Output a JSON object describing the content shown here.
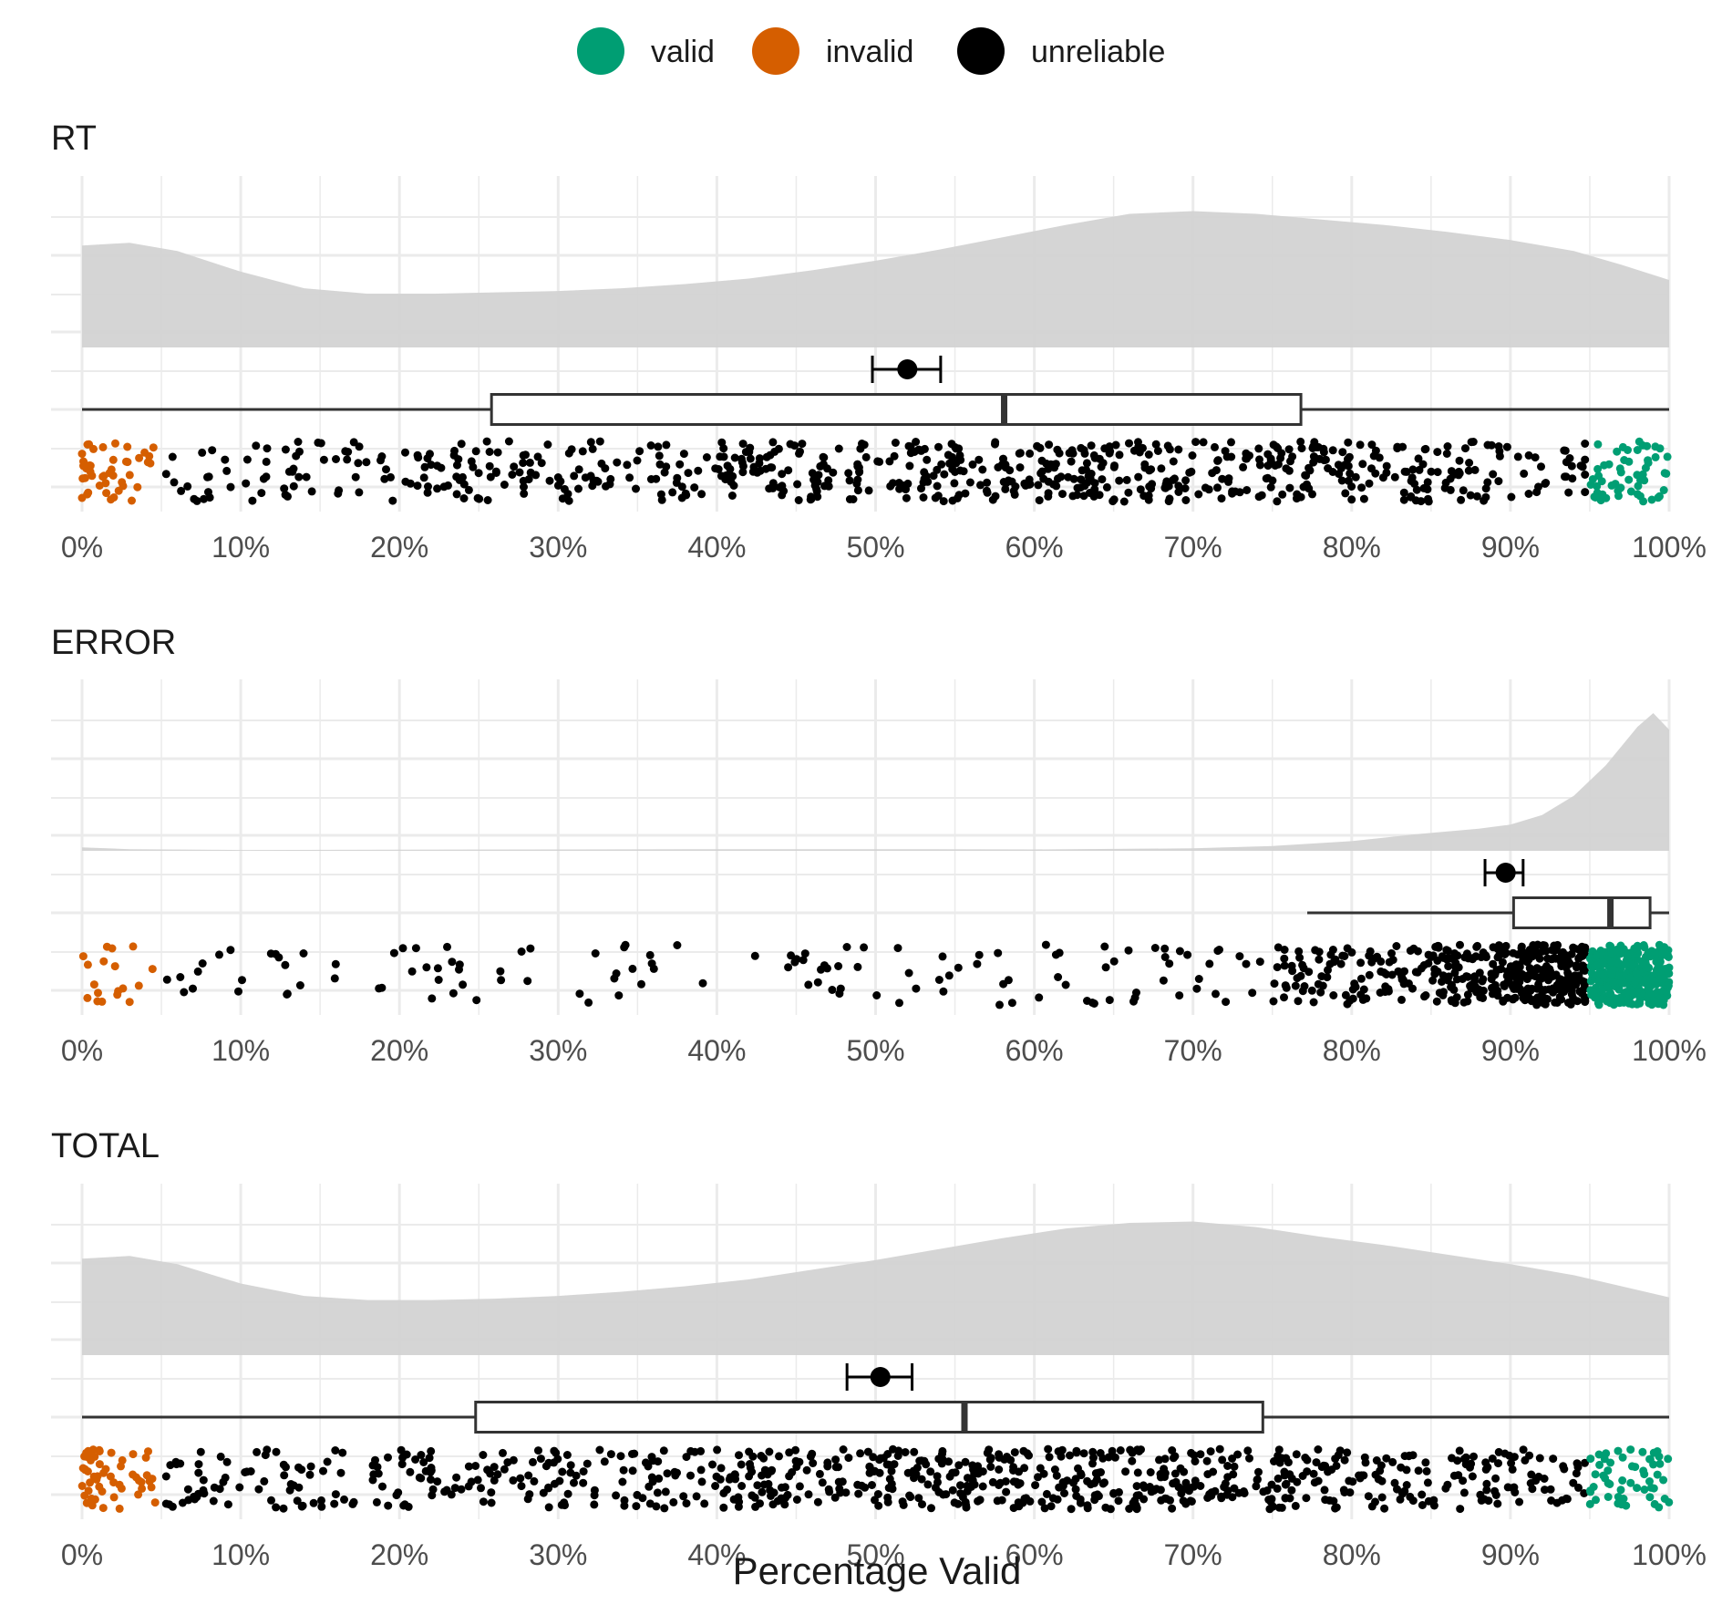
{
  "colors": {
    "valid": "#009E73",
    "invalid": "#D55E00",
    "unreliable": "#000000",
    "density_fill": "#d3d3d3",
    "grid": "#ebebeb",
    "box_line": "#333333"
  },
  "chart_data": {
    "type": "raincloud",
    "xlabel": "Percentage Valid",
    "xlim": [
      0,
      100
    ],
    "x_tick_values": [
      0,
      10,
      20,
      30,
      40,
      50,
      60,
      70,
      80,
      90,
      100
    ],
    "x_tick_labels": [
      "0%",
      "10%",
      "20%",
      "30%",
      "40%",
      "50%",
      "60%",
      "70%",
      "80%",
      "90%",
      "100%"
    ],
    "grid": true,
    "legend": {
      "position": "top",
      "entries": [
        {
          "label": "valid",
          "color": "#009E73"
        },
        {
          "label": "invalid",
          "color": "#D55E00"
        },
        {
          "label": "unreliable",
          "color": "#000000"
        }
      ]
    },
    "category_rules": {
      "invalid_below": 5,
      "valid_at_or_above": 95
    },
    "panels": [
      {
        "title": "RT",
        "mean": 52,
        "mean_ci": [
          49.8,
          54.1
        ],
        "box": {
          "whisker_low": 0,
          "q1": 25.8,
          "median": 58.1,
          "q3": 76.8,
          "whisker_high": 100
        },
        "density": [
          [
            0,
            0.74
          ],
          [
            3,
            0.76
          ],
          [
            6,
            0.7
          ],
          [
            10,
            0.55
          ],
          [
            14,
            0.43
          ],
          [
            18,
            0.39
          ],
          [
            22,
            0.39
          ],
          [
            26,
            0.4
          ],
          [
            30,
            0.41
          ],
          [
            34,
            0.43
          ],
          [
            38,
            0.46
          ],
          [
            42,
            0.5
          ],
          [
            46,
            0.56
          ],
          [
            50,
            0.63
          ],
          [
            54,
            0.71
          ],
          [
            58,
            0.8
          ],
          [
            62,
            0.89
          ],
          [
            66,
            0.97
          ],
          [
            70,
            0.99
          ],
          [
            74,
            0.97
          ],
          [
            78,
            0.93
          ],
          [
            82,
            0.89
          ],
          [
            86,
            0.84
          ],
          [
            90,
            0.78
          ],
          [
            94,
            0.7
          ],
          [
            97,
            0.6
          ],
          [
            100,
            0.49
          ]
        ],
        "points": {
          "invalid": 45,
          "valid": 55,
          "unreliable": 700,
          "unreliable_weights": [
            [
              5,
              0.5
            ],
            [
              20,
              0.7
            ],
            [
              40,
              1.0
            ],
            [
              55,
              1.6
            ],
            [
              68,
              1.6
            ],
            [
              80,
              1.2
            ],
            [
              95,
              0.7
            ]
          ]
        }
      },
      {
        "title": "ERROR",
        "mean": 89.7,
        "mean_ci": [
          88.4,
          90.8
        ],
        "box": {
          "whisker_low": 77.2,
          "q1": 90.2,
          "median": 96.3,
          "q3": 98.8,
          "whisker_high": 100
        },
        "density": [
          [
            0,
            0.025
          ],
          [
            3,
            0.012
          ],
          [
            10,
            0.006
          ],
          [
            20,
            0.008
          ],
          [
            30,
            0.01
          ],
          [
            40,
            0.012
          ],
          [
            50,
            0.012
          ],
          [
            60,
            0.01
          ],
          [
            70,
            0.018
          ],
          [
            75,
            0.035
          ],
          [
            80,
            0.07
          ],
          [
            84,
            0.12
          ],
          [
            88,
            0.16
          ],
          [
            90,
            0.19
          ],
          [
            92,
            0.26
          ],
          [
            94,
            0.4
          ],
          [
            96,
            0.62
          ],
          [
            98,
            0.9
          ],
          [
            99,
            1.0
          ],
          [
            100,
            0.88
          ]
        ],
        "points": {
          "invalid": 18,
          "valid": 320,
          "unreliable": 560,
          "unreliable_weights": [
            [
              5,
              0.05
            ],
            [
              30,
              0.07
            ],
            [
              60,
              0.08
            ],
            [
              75,
              0.2
            ],
            [
              85,
              0.7
            ],
            [
              90,
              1.4
            ],
            [
              95,
              2.2
            ]
          ]
        }
      },
      {
        "title": "TOTAL",
        "mean": 50.3,
        "mean_ci": [
          48.2,
          52.3
        ],
        "box": {
          "whisker_low": 0,
          "q1": 24.8,
          "median": 55.6,
          "q3": 74.4,
          "whisker_high": 100
        },
        "density": [
          [
            0,
            0.7
          ],
          [
            3,
            0.72
          ],
          [
            6,
            0.66
          ],
          [
            10,
            0.52
          ],
          [
            14,
            0.43
          ],
          [
            18,
            0.4
          ],
          [
            22,
            0.4
          ],
          [
            26,
            0.41
          ],
          [
            30,
            0.43
          ],
          [
            34,
            0.46
          ],
          [
            38,
            0.5
          ],
          [
            42,
            0.55
          ],
          [
            46,
            0.62
          ],
          [
            50,
            0.69
          ],
          [
            54,
            0.77
          ],
          [
            58,
            0.85
          ],
          [
            62,
            0.92
          ],
          [
            66,
            0.96
          ],
          [
            70,
            0.97
          ],
          [
            74,
            0.93
          ],
          [
            78,
            0.86
          ],
          [
            82,
            0.8
          ],
          [
            86,
            0.73
          ],
          [
            90,
            0.66
          ],
          [
            94,
            0.58
          ],
          [
            97,
            0.5
          ],
          [
            100,
            0.42
          ]
        ],
        "points": {
          "invalid": 55,
          "valid": 55,
          "unreliable": 780,
          "unreliable_weights": [
            [
              5,
              0.5
            ],
            [
              20,
              0.7
            ],
            [
              40,
              1.0
            ],
            [
              55,
              1.5
            ],
            [
              68,
              1.5
            ],
            [
              80,
              1.2
            ],
            [
              95,
              0.7
            ]
          ]
        }
      }
    ]
  }
}
